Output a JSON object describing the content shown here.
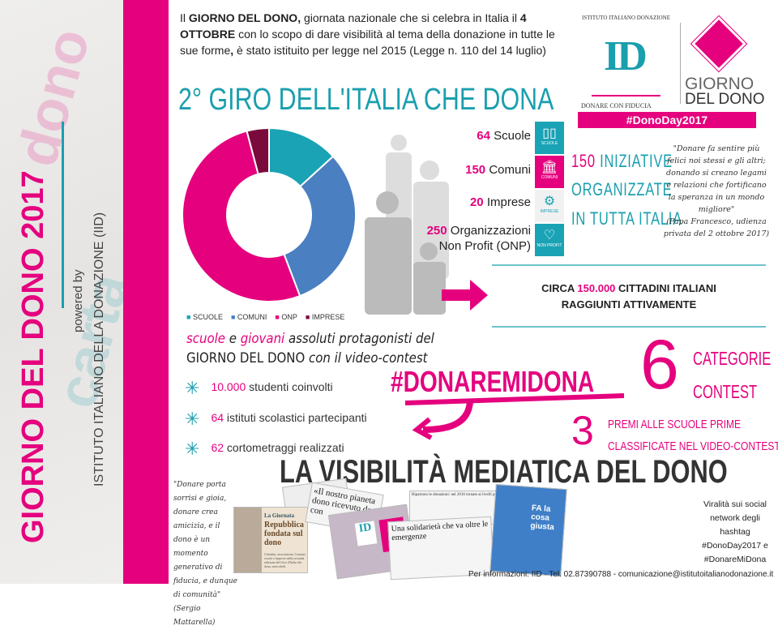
{
  "sidebar": {
    "title": "GIORNO DEL DONO 2017",
    "powered_by": "powered by",
    "institute": "ISTITUTO ITALIANO DELLA DONAZIONE (IID)"
  },
  "intro": {
    "p1": "Il ",
    "b1": "GIORNO DEL DONO,",
    "p2": " giornata nazionale che si celebra in Italia il ",
    "b2": "4 OTTOBRE",
    "p3": " con lo scopo di dare visibilità al tema della donazione in tutte le sue forme",
    "b3": ",",
    "p4": " è stato istituito per legge nel 2015 (Legge n. 110 del 14 luglio)"
  },
  "logo": {
    "arc_text": "ISTITUTO ITALIANO DONAZIONE",
    "monogram": "ID",
    "tagline": "DONARE CON FIDUCIA",
    "giorno": "GIORNO",
    "del_dono": "DEL DONO",
    "hashtag": "#DonoDay2017"
  },
  "section_title": "2° GIRO DELL'ITALIA CHE DONA",
  "chart_data": {
    "type": "pie",
    "donut": true,
    "categories": [
      "SCUOLE",
      "COMUNI",
      "ONP",
      "IMPRESE"
    ],
    "values": [
      64,
      150,
      250,
      20
    ],
    "colors": [
      "#1aa3b5",
      "#4a7fc1",
      "#e5007e",
      "#7a0a3c"
    ],
    "legend": "bottom"
  },
  "stats": [
    {
      "n": "64",
      "label": "Scuole",
      "icon": "book-icon",
      "tag": "SCUOLE"
    },
    {
      "n": "150",
      "label": "Comuni",
      "icon": "building-icon",
      "tag": "COMUNI"
    },
    {
      "n": "20",
      "label": "Imprese",
      "icon": "gears-icon",
      "tag": "IMPRESE"
    },
    {
      "n": "250",
      "label": "Organizzazioni",
      "label2": "Non Profit (ONP)",
      "icon": "heart-icon",
      "tag": "NON PROFIT"
    }
  ],
  "stat_tag_prefix": "DONODAY",
  "initiatives": {
    "n": "150",
    "l1": "INIZIATIVE",
    "l2": "ORGANIZZATE",
    "l3": "IN TUTTA ITALIA"
  },
  "quote_pope": {
    "text": "\"Donare fa sentire più felici noi stessi e gli altri; donando si creano legami e relazioni che fortificano la speranza in un mondo migliore\"",
    "source": "(Papa Francesco, udienza privata del 2 ottobre 2017)"
  },
  "citizens": {
    "pre": "CIRCA ",
    "n": "150.000",
    "post": " CITTADINI ITALIANI",
    "line2": "RAGGIUNTI ATTIVAMENTE"
  },
  "youth": {
    "w1": "scuole",
    "w2": " e ",
    "w3": "giovani",
    "w4": " assoluti protagonisti del",
    "line2a": "GIORNO DEL DONO",
    "line2b": " con il video-contest"
  },
  "bullets": [
    {
      "n": "10.000",
      "t": " studenti coinvolti"
    },
    {
      "n": "64",
      "t": " istituti scolastici partecipanti"
    },
    {
      "n": "62",
      "t": " cortometraggi realizzati"
    }
  ],
  "contest": {
    "hashtag": "#DONAREMIDONA",
    "six": "6",
    "cat1": "CATEGORIE",
    "cat2": "CONTEST",
    "three": "3",
    "prize1": "PREMI ALLE SCUOLE PRIME",
    "prize2": "CLASSIFICATE NEL VIDEO-CONTEST"
  },
  "media_title": "LA VISIBILITÀ MEDIATICA DEL DONO",
  "quote_mattarella": {
    "text": "\"Donare porta sorrisi e gioia, donare crea amicizia, e il dono è un momento generativo di fiducia, e dunque di comunità\"",
    "source": "(Sergio Mattarella)"
  },
  "clippings": {
    "c1_head": "La Giornata",
    "c1_title": "Repubblica fondata sul dono",
    "c1_body": "Cittadini, associazioni, Comuni, scuole e imprese nella seconda edizione del Giro d'Italia che dona, mercoledì.",
    "c2": "«Il nostro pianeta dono ricevuto da con",
    "c3_head": "Ripartono le donazioni: nel 2016 tornate ai livelli pre-crisi",
    "c3_title": "Una solidarietà che va oltre le emergenze",
    "c4": "FA la cosa giusta"
  },
  "virality": {
    "text": "Viralità sui social network degli hashtag",
    "h1": "#DonoDay2017 e",
    "h2": "#DonareMiDona"
  },
  "footer": "Per informazioni: IID - Tel. 02.87390788 - comunicazione@istitutoitalianodonazione.it"
}
